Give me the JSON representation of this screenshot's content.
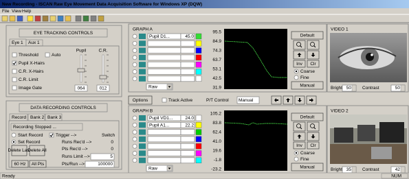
{
  "window": {
    "title": "New Recording - ISCAN Raw Eye Movement Data Acquisition Software for Windows XP (DQW)"
  },
  "menu": [
    "File",
    "View",
    "Help"
  ],
  "eye_tracking": {
    "title": "EYE TRACKING CONTROLS",
    "tabs": [
      "Eye 1",
      "Aux 1"
    ],
    "checkboxes": [
      "Threshold",
      "Auto",
      "Pupil X-Hairs",
      "C.R. X-Hairs",
      "C.R. Limit",
      "Image Gate"
    ],
    "slider_labels": [
      "Pupil",
      "C.R."
    ],
    "slider_values": [
      "064",
      "012"
    ]
  },
  "data_recording": {
    "title": "DATA RECORDING CONTROLS",
    "tabs": [
      "Record",
      "Bank 2",
      "Bank 3"
    ],
    "status": "Recording Stopped ...",
    "options": [
      "Start Record",
      "Set Record",
      "Trigger -->",
      "Switch"
    ],
    "buttons": [
      "Delete Last",
      "Delete All"
    ],
    "counters": [
      {
        "label": "Runs Rec'd -->",
        "value": "0"
      },
      {
        "label": "Pts Rec'd -->",
        "value": "0"
      },
      {
        "label": "Runs Limit -->",
        "value": "5"
      },
      {
        "label": "Pts/Run -->",
        "value": "100000"
      }
    ],
    "rate": "60 Hz",
    "points": "All Pts"
  },
  "graph_a": {
    "title": "GRAPH A",
    "channels": [
      {
        "name": "Pupil D1...",
        "value": "45.0"
      }
    ],
    "axis": [
      "95.5",
      "84.9",
      "74.3",
      "63.7",
      "53.1",
      "42.5",
      "31.9"
    ],
    "mode": "Raw",
    "buttons": [
      "Default",
      "Inv",
      "Clr",
      "Manual"
    ],
    "resolution": [
      "Coarse",
      "Fine"
    ]
  },
  "controls": {
    "options": "Options",
    "track_active": "Track Active",
    "pt_control": "P/T Control",
    "pt_mode": "Manual"
  },
  "graph_b": {
    "title": "GRAPH B",
    "channels": [
      {
        "name": "Pupil VD1...",
        "value": "24.0"
      },
      {
        "name": "Pupil A1...",
        "value": "22.2"
      }
    ],
    "axis": [
      "105.2",
      "83.8",
      "62.4",
      "41.0",
      "19.6",
      "-1.8",
      "-23.2"
    ],
    "mode": "Raw",
    "buttons": [
      "Default",
      "Inv",
      "Clr",
      "Manual"
    ],
    "resolution": [
      "Coarse",
      "Fine"
    ]
  },
  "video_1": {
    "title": "VIDEO 1",
    "bright_label": "Bright",
    "bright": "50",
    "contrast_label": "Contrast",
    "contrast": "50"
  },
  "video_2": {
    "title": "VIDEO 2",
    "bright_label": "Bright",
    "bright": "35",
    "contrast_label": "Contrast",
    "contrast": "42"
  },
  "status": {
    "left": "Ready",
    "right": "NUM"
  }
}
